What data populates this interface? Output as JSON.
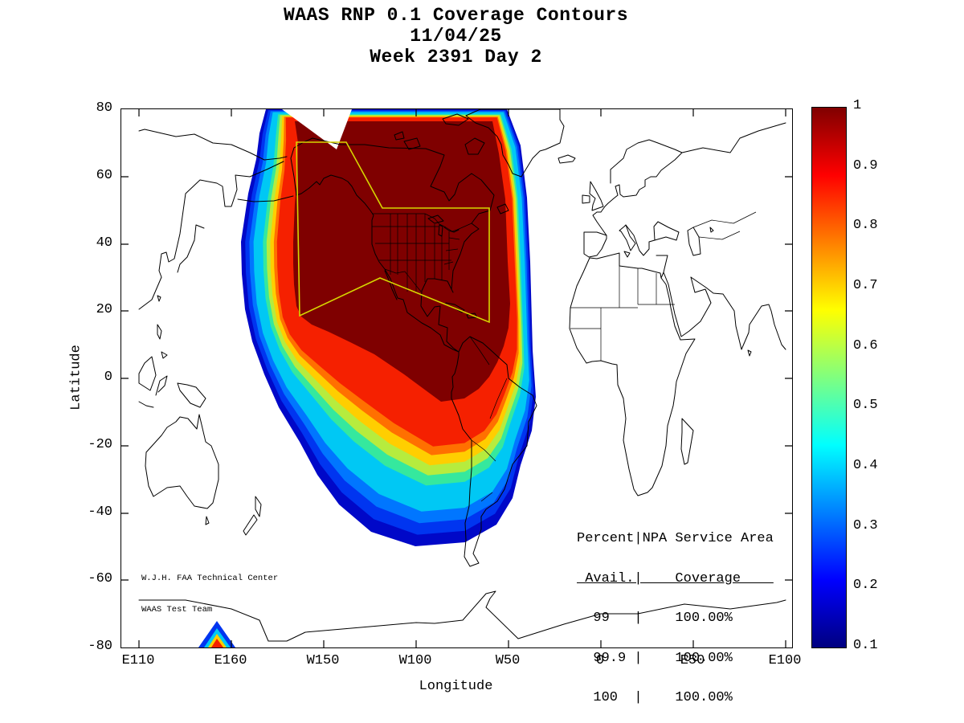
{
  "title": {
    "line1": "WAAS RNP 0.1 Coverage Contours",
    "line2": "11/04/25",
    "line3": "Week 2391 Day 2"
  },
  "axes": {
    "xlabel": "Longitude",
    "ylabel": "Latitude",
    "x_ticks": [
      "E110",
      "E160",
      "W150",
      "W100",
      "W50",
      "0",
      "E50",
      "E100"
    ],
    "y_ticks": [
      "80",
      "60",
      "40",
      "20",
      "0",
      "-20",
      "-40",
      "-60",
      "-80"
    ]
  },
  "colorbar": {
    "tick_labels": [
      "1",
      "0.9",
      "0.8",
      "0.7",
      "0.6",
      "0.5",
      "0.4",
      "0.3",
      "0.2",
      "0.1"
    ]
  },
  "annotations": {
    "credit": {
      "line1": "W.J.H. FAA Technical Center",
      "line2": "WAAS Test Team"
    },
    "coverage_table": {
      "line1": "Percent|NPA Service Area",
      "line2": " Avail.|    Coverage    ",
      "row1": "  99   |    100.00%",
      "row2": "  99.9 |    100.00%",
      "row3": "  100  |    100.00%"
    }
  },
  "chart_data": {
    "type": "heatmap",
    "subtype": "filled-contour-coverage-map",
    "title": "WAAS RNP 0.1 Coverage Contours",
    "date": "11/04/25",
    "week_day": "Week 2391 Day 2",
    "xlabel": "Longitude",
    "ylabel": "Latitude",
    "x_tick_labels": [
      "E110",
      "E160",
      "W150",
      "W100",
      "W50",
      "0",
      "E50",
      "E100"
    ],
    "y_tick_labels": [
      80,
      60,
      40,
      20,
      0,
      -20,
      -40,
      -60,
      -80
    ],
    "lat_range": [
      -80,
      80
    ],
    "lon_axis_note": "Longitude axis spans E110 eastward across the Pacific and Americas to E100",
    "grid": false,
    "colorbar": {
      "min": 0.1,
      "max": 1.0,
      "colormap": "jet",
      "tick_values": [
        1,
        0.9,
        0.8,
        0.7,
        0.6,
        0.5,
        0.4,
        0.3,
        0.2,
        0.1
      ],
      "position": "right"
    },
    "contour_levels": [
      0.1,
      0.2,
      0.3,
      0.4,
      0.5,
      0.6,
      0.7,
      0.8,
      0.9,
      0.95
    ],
    "level_colors": [
      "#0008C8",
      "#0035F0",
      "#0076FF",
      "#00C8F4",
      "#35E89E",
      "#B6EC3E",
      "#FFCE00",
      "#FF7000",
      "#F52000",
      "#7F0000"
    ],
    "region_notes": "Coverage ~1.0 (dark red) over North America, the northeast Pacific and Caribbean; concentric contour rings decrease southward to 0.1 (dark blue) near 50S in the south Pacific; small secondary contour peak near E150, -80.",
    "service_area_outline": {
      "label": "NPA Service Area",
      "color": "#D6D600"
    },
    "coverage_table": {
      "columns": [
        "Percent Avail.",
        "NPA Service Area Coverage"
      ],
      "rows": [
        [
          "99",
          "100.00%"
        ],
        [
          "99.9",
          "100.00%"
        ],
        [
          "100",
          "100.00%"
        ]
      ]
    }
  }
}
